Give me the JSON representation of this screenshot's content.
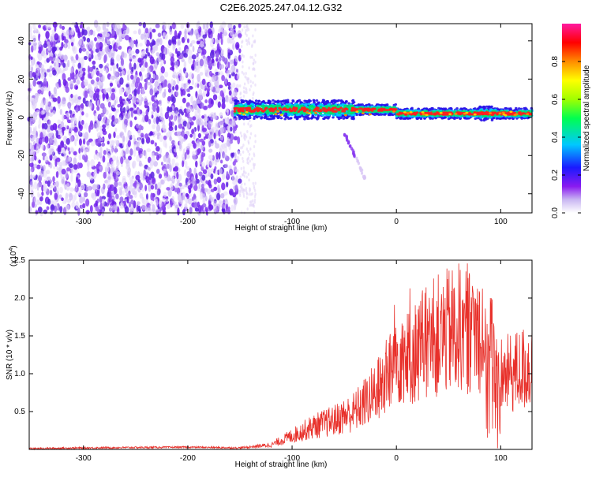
{
  "title": "C2E6.2025.247.04.12.G32",
  "chart_data": [
    {
      "type": "heatmap",
      "xlabel": "Height of straight line (km)",
      "ylabel": "Frequency (Hz)",
      "xlim": [
        -352,
        130
      ],
      "ylim": [
        -50,
        49
      ],
      "x_ticks": [
        -300,
        -200,
        -100,
        0,
        100
      ],
      "y_ticks": [
        -40,
        -20,
        0,
        20,
        40
      ],
      "colorbar": {
        "label": "Normalized spectral amplitude",
        "range": [
          0,
          1
        ],
        "ticks": [
          0.0,
          0.2,
          0.4,
          0.6,
          0.8
        ],
        "tick_labels": [
          "0.0",
          "0.2",
          "0.4",
          "0.6",
          "0.8"
        ]
      },
      "features": {
        "noise_region_x": [
          -352,
          -150
        ],
        "band_x": [
          -155,
          130
        ],
        "band_center_hz": 2,
        "band_halfwidth_hz": 4,
        "side_trace": {
          "x": [
            -50,
            -30
          ],
          "y": [
            -8,
            -32
          ]
        }
      }
    },
    {
      "type": "line",
      "xlabel": "Height of straight line (km)",
      "ylabel": "SNR (10 * v/v)",
      "y_multiplier": "(x10",
      "y_multiplier_exp": "4",
      "y_multiplier_close": ")",
      "xlim": [
        -352,
        130
      ],
      "ylim": [
        0,
        2.5
      ],
      "x_ticks": [
        -300,
        -200,
        -100,
        0,
        100
      ],
      "y_ticks": [
        0.5,
        1.0,
        1.5,
        2.0,
        2.5
      ],
      "y_tick_labels": [
        "0.5",
        "1.0",
        "1.5",
        "2.0",
        "2.5"
      ],
      "series": [
        {
          "color": "#e8302a",
          "envelope": {
            "x": [
              -352,
              -300,
              -200,
              -150,
              -120,
              -100,
              -80,
              -60,
              -40,
              -20,
              -10,
              0,
              5,
              10,
              20,
              30,
              40,
              50,
              60,
              70,
              80,
              90,
              95,
              100,
              110,
              120,
              130
            ],
            "y": [
              0.01,
              0.02,
              0.03,
              0.02,
              0.06,
              0.18,
              0.3,
              0.38,
              0.5,
              0.75,
              0.95,
              1.15,
              1.3,
              1.2,
              1.3,
              1.4,
              1.5,
              1.55,
              1.6,
              1.6,
              1.58,
              1.45,
              1.2,
              0.95,
              1.0,
              1.05,
              1.1
            ]
          }
        }
      ]
    }
  ]
}
